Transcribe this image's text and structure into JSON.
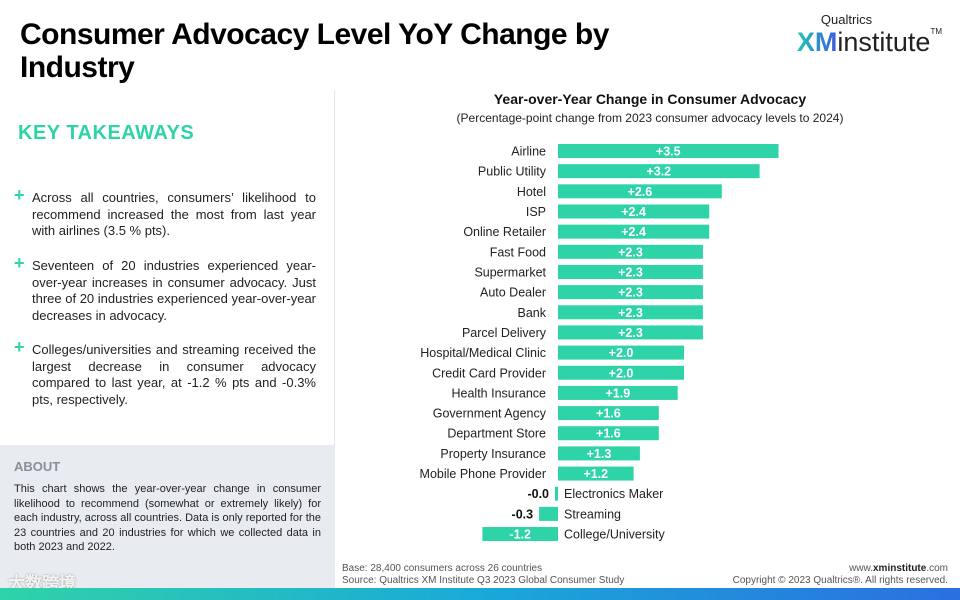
{
  "title": "Consumer Advocacy Level YoY Change by Industry",
  "logo": {
    "top": "Qualtrics",
    "xm": "XM",
    "institute": "institute",
    "tm": "TM"
  },
  "key_takeaways": {
    "heading": "KEY TAKEAWAYS",
    "bullets": [
      "Across all countries, consumers’ likelihood to recommend increased the most from last year with airlines (3.5 % pts).",
      "Seventeen of 20 industries experienced year-over-year increases in consumer advocacy. Just three of 20 industries experienced year-over-year decreases in advocacy.",
      "Colleges/universities and streaming received the largest decrease in consumer advocacy compared to last year, at -1.2 % pts and -0.3% pts, respectively."
    ]
  },
  "about": {
    "heading": "ABOUT",
    "text": "This chart shows the year-over-year change in consumer likelihood to recommend (somewhat or extremely likely) for each industry, across all countries. Data is only reported for the 23 countries and 20 industries for which we collected data in both 2023 and 2022."
  },
  "watermark": "大数跨境",
  "footer": {
    "base": "Base: 28,400 consumers across 26 countries",
    "source": "Source: Qualtrics XM Institute Q3 2023 Global Consumer Study",
    "site_prefix": "www.",
    "site_bold": "xminstitute",
    "site_suffix": ".com",
    "copyright": "Copyright © 2023 Qualtrics®. All rights reserved."
  },
  "colors": {
    "bar": "#2fd3a8",
    "accent": "#2fd3a8"
  },
  "chart_data": {
    "type": "bar",
    "orientation": "horizontal",
    "title": "Year-over-Year Change in Consumer Advocacy",
    "subtitle": "(Percentage-point change from 2023 consumer advocacy levels to 2024)",
    "categories": [
      "Airline",
      "Public Utility",
      "Hotel",
      "ISP",
      "Online Retailer",
      "Fast Food",
      "Supermarket",
      "Auto Dealer",
      "Bank",
      "Parcel Delivery",
      "Hospital/Medical Clinic",
      "Credit Card Provider",
      "Health Insurance",
      "Government Agency",
      "Department Store",
      "Property Insurance",
      "Mobile Phone Provider",
      "Electronics Maker",
      "Streaming",
      "College/University"
    ],
    "values": [
      3.5,
      3.2,
      2.6,
      2.4,
      2.4,
      2.3,
      2.3,
      2.3,
      2.3,
      2.3,
      2.0,
      2.0,
      1.9,
      1.6,
      1.6,
      1.3,
      1.2,
      -0.0,
      -0.3,
      -1.2
    ],
    "labels": [
      "+3.5",
      "+3.2",
      "+2.6",
      "+2.4",
      "+2.4",
      "+2.3",
      "+2.3",
      "+2.3",
      "+2.3",
      "+2.3",
      "+2.0",
      "+2.0",
      "+1.9",
      "+1.6",
      "+1.6",
      "+1.3",
      "+1.2",
      "-0.0",
      "-0.3",
      "-1.2"
    ],
    "xlim": [
      -1.3,
      3.6
    ],
    "grid": false,
    "legend": "none"
  }
}
